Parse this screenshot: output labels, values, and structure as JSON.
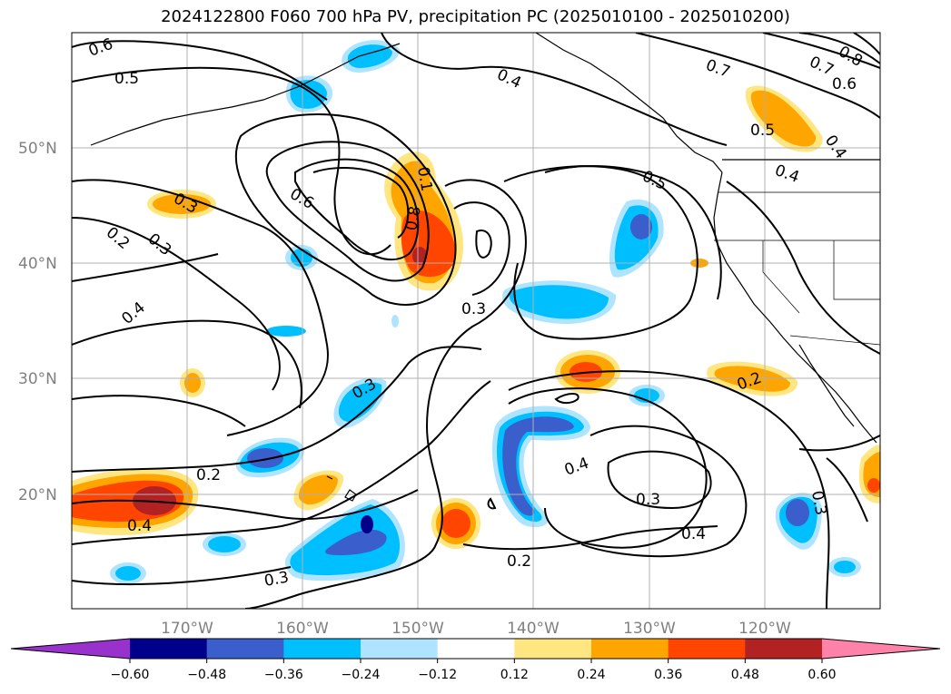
{
  "title": "2024122800 F060 700 hPa PV, precipitation PC (2025010100 - 2025010200)",
  "map": {
    "lat_labels": [
      "50°N",
      "40°N",
      "30°N",
      "20°N"
    ],
    "lon_labels": [
      "170°W",
      "160°W",
      "150°W",
      "140°W",
      "130°W",
      "120°W"
    ],
    "contour_labels": [
      "0.6",
      "0.5",
      "0.4",
      "0.7",
      "0.8",
      "0.7",
      "0.6",
      "0.5",
      "0.4",
      "0.4",
      "0.5",
      "0.6",
      "0.3",
      "0.2",
      "0.3",
      "0.4",
      "0.1",
      "0.8",
      "0.3",
      "0.3",
      "0.2",
      "0.4",
      "0.3",
      "0.4",
      "0.2",
      "0.3",
      "0.3",
      "0.2",
      "0.4"
    ]
  },
  "colorbar": {
    "ticks": [
      "−0.60",
      "−0.48",
      "−0.36",
      "−0.24",
      "−0.12",
      "0.12",
      "0.24",
      "0.36",
      "0.48",
      "0.60"
    ],
    "colors": [
      "#9932cc",
      "#00008b",
      "#3a5fcd",
      "#00bfff",
      "#aee4ff",
      "#ffffff",
      "#ffe680",
      "#ffa500",
      "#ff4500",
      "#b22222",
      "#ff82ab"
    ]
  },
  "colors": {
    "contour": "#000000",
    "grid": "#b0b0b0",
    "axis_text": "#808080"
  }
}
